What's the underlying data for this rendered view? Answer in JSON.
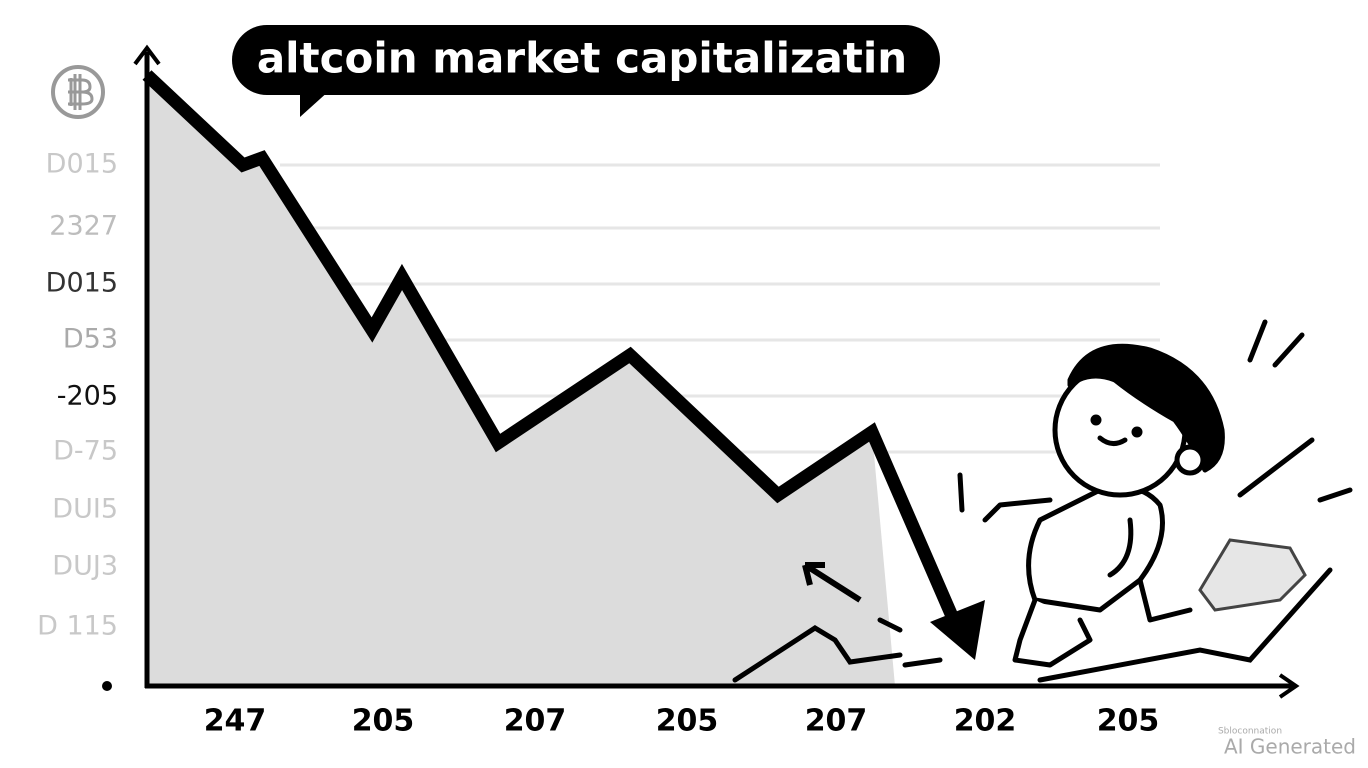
{
  "title": "altcoin market  capitalizatin",
  "y_labels": [
    "D015",
    "2327",
    "D015",
    "D53",
    "-205",
    "D-75",
    "DUI5",
    "DUJ3",
    "D 115"
  ],
  "x_labels": [
    "247",
    "205",
    "207",
    "205",
    "207",
    "202",
    "205"
  ],
  "watermark": {
    "small": "Sbloconnation",
    "main": "AI Generated"
  }
}
